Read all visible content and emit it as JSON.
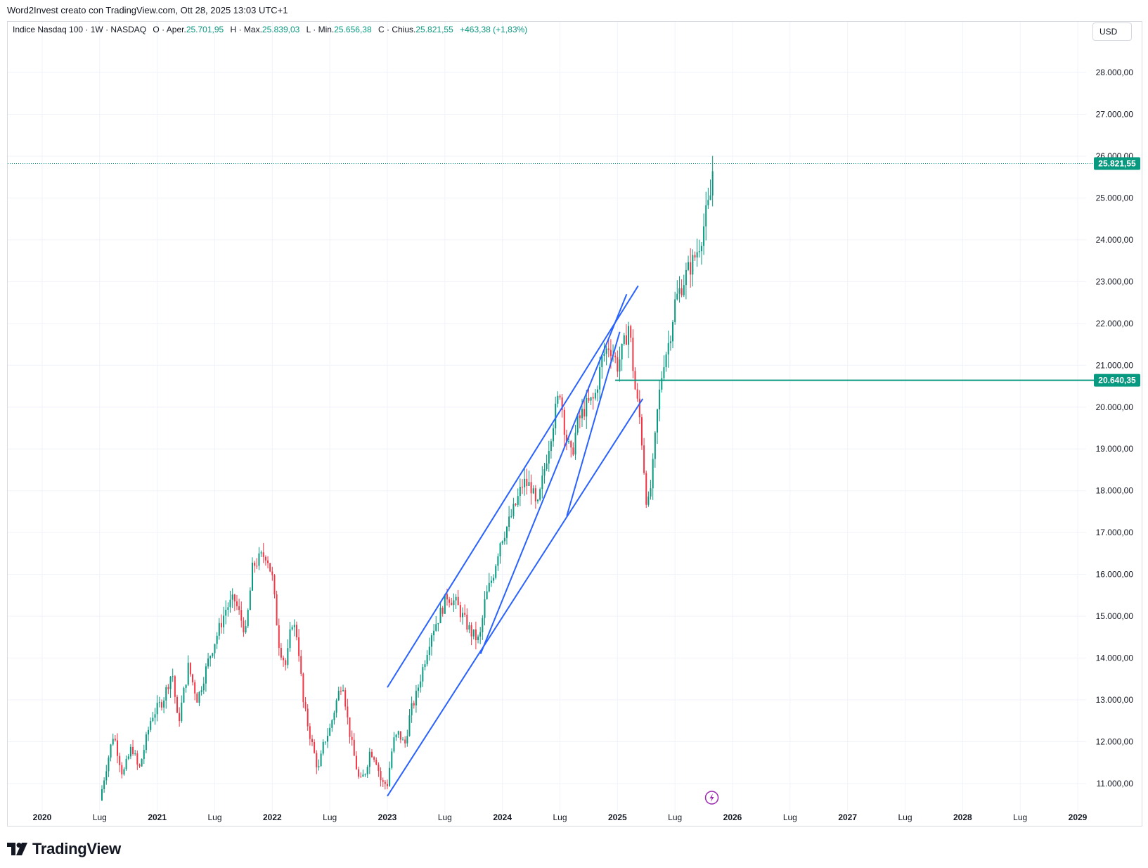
{
  "header": {
    "caption": "Word2Invest creato con TradingView.com, Ott 28, 2025 13:03 UTC+1"
  },
  "legend": {
    "symbol": "Indice Nasdaq 100 · 1W · NASDAQ",
    "o_label": "O",
    "open_label": "Aper.",
    "open_value": "25.701,95",
    "h_label": "H",
    "high_label": "Max.",
    "high_value": "25.839,03",
    "l_label": "L",
    "low_label": "Min.",
    "low_value": "25.656,38",
    "c_label": "C",
    "close_label": "Chius.",
    "close_value": "25.821,55",
    "change": "+463,38 (+1,83%)"
  },
  "currency": "USD",
  "footer": {
    "brand": "TradingView"
  },
  "icons": {
    "logo": "tradingview-logo-icon",
    "event": "lightning-bolt-icon"
  },
  "colors": {
    "up": "#089981",
    "down": "#f23645",
    "trendline": "#2962ff",
    "hline": "#089981",
    "event": "#9c27b0"
  },
  "chart_data": {
    "type": "candlestick",
    "title": "Indice Nasdaq 100 · 1W · NASDAQ",
    "timeframe": "1W",
    "currency": "USD",
    "y_axis": {
      "ticks": [
        "11.000,00",
        "12.000,00",
        "13.000,00",
        "14.000,00",
        "15.000,00",
        "16.000,00",
        "17.000,00",
        "18.000,00",
        "19.000,00",
        "20.000,00",
        "21.000,00",
        "22.000,00",
        "23.000,00",
        "24.000,00",
        "25.000,00",
        "26.000,00",
        "27.000,00",
        "28.000,00"
      ],
      "tick_values": [
        11000,
        12000,
        13000,
        14000,
        15000,
        16000,
        17000,
        18000,
        19000,
        20000,
        21000,
        22000,
        23000,
        24000,
        25000,
        26000,
        27000,
        28000
      ],
      "range": [
        10500,
        28900
      ]
    },
    "x_axis": {
      "labels": [
        "2020",
        "Lug",
        "2021",
        "Lug",
        "2022",
        "Lug",
        "2023",
        "Lug",
        "2024",
        "Lug",
        "2025",
        "Lug",
        "2026",
        "Lug",
        "2027",
        "Lug",
        "2028",
        "Lug",
        "2029"
      ],
      "label_times": [
        2020.0,
        2020.5,
        2021.0,
        2021.5,
        2022.0,
        2022.5,
        2023.0,
        2023.5,
        2024.0,
        2024.5,
        2025.0,
        2025.5,
        2026.0,
        2026.5,
        2027.0,
        2027.5,
        2028.0,
        2028.5,
        2029.0
      ],
      "year_labels": [
        "2020",
        "2021",
        "2022",
        "2023",
        "2024",
        "2025",
        "2026",
        "2027",
        "2028",
        "2029"
      ],
      "range": [
        2019.67,
        2029.12
      ]
    },
    "price_path": [
      [
        2020.5,
        10600
      ],
      [
        2020.55,
        11300
      ],
      [
        2020.62,
        12200
      ],
      [
        2020.7,
        11200
      ],
      [
        2020.78,
        11900
      ],
      [
        2020.84,
        11300
      ],
      [
        2020.95,
        12600
      ],
      [
        2021.05,
        13000
      ],
      [
        2021.13,
        13700
      ],
      [
        2021.18,
        12400
      ],
      [
        2021.27,
        13800
      ],
      [
        2021.35,
        13000
      ],
      [
        2021.45,
        14000
      ],
      [
        2021.55,
        14800
      ],
      [
        2021.6,
        15200
      ],
      [
        2021.67,
        15400
      ],
      [
        2021.72,
        15000
      ],
      [
        2021.77,
        14600
      ],
      [
        2021.83,
        16200
      ],
      [
        2021.9,
        16400
      ],
      [
        2021.95,
        16500
      ],
      [
        2022.0,
        15900
      ],
      [
        2022.06,
        14300
      ],
      [
        2022.12,
        13800
      ],
      [
        2022.17,
        14900
      ],
      [
        2022.22,
        14500
      ],
      [
        2022.27,
        12900
      ],
      [
        2022.34,
        12000
      ],
      [
        2022.4,
        11300
      ],
      [
        2022.45,
        12000
      ],
      [
        2022.5,
        12300
      ],
      [
        2022.56,
        13000
      ],
      [
        2022.61,
        13500
      ],
      [
        2022.66,
        12400
      ],
      [
        2022.7,
        11800
      ],
      [
        2022.76,
        11000
      ],
      [
        2022.81,
        11300
      ],
      [
        2022.85,
        11800
      ],
      [
        2022.9,
        11600
      ],
      [
        2022.95,
        11000
      ],
      [
        2023.0,
        11000
      ],
      [
        2023.05,
        12000
      ],
      [
        2023.1,
        12200
      ],
      [
        2023.15,
        11900
      ],
      [
        2023.2,
        12700
      ],
      [
        2023.25,
        13100
      ],
      [
        2023.32,
        13900
      ],
      [
        2023.38,
        14600
      ],
      [
        2023.45,
        15000
      ],
      [
        2023.52,
        15500
      ],
      [
        2023.6,
        15300
      ],
      [
        2023.67,
        14900
      ],
      [
        2023.73,
        14600
      ],
      [
        2023.8,
        14400
      ],
      [
        2023.85,
        15400
      ],
      [
        2023.92,
        16000
      ],
      [
        2023.98,
        16800
      ],
      [
        2024.05,
        17200
      ],
      [
        2024.12,
        17700
      ],
      [
        2024.18,
        18200
      ],
      [
        2024.25,
        18100
      ],
      [
        2024.3,
        17500
      ],
      [
        2024.37,
        18600
      ],
      [
        2024.43,
        19500
      ],
      [
        2024.5,
        20400
      ],
      [
        2024.55,
        19300
      ],
      [
        2024.6,
        18800
      ],
      [
        2024.65,
        19600
      ],
      [
        2024.72,
        20000
      ],
      [
        2024.8,
        20200
      ],
      [
        2024.87,
        21200
      ],
      [
        2024.93,
        21500
      ],
      [
        2025.0,
        21000
      ],
      [
        2025.05,
        21400
      ],
      [
        2025.1,
        22000
      ],
      [
        2025.15,
        20500
      ],
      [
        2025.2,
        19600
      ],
      [
        2025.26,
        17500
      ],
      [
        2025.3,
        18300
      ],
      [
        2025.35,
        20000
      ],
      [
        2025.4,
        21100
      ],
      [
        2025.45,
        21600
      ],
      [
        2025.5,
        22500
      ],
      [
        2025.57,
        23000
      ],
      [
        2025.62,
        23300
      ],
      [
        2025.66,
        23500
      ],
      [
        2025.7,
        23800
      ],
      [
        2025.74,
        24200
      ],
      [
        2025.77,
        24600
      ],
      [
        2025.8,
        24900
      ],
      [
        2025.82,
        25300
      ],
      [
        2025.83,
        25821.55
      ]
    ],
    "last_price": {
      "value": 25821.55,
      "label": "25.821,55"
    },
    "horizontal_line": {
      "value": 20640.35,
      "label": "20.640,35",
      "from_time": 2024.98
    },
    "trendlines": [
      {
        "points": [
          [
            2023.0,
            13300
          ],
          [
            2025.18,
            22900
          ]
        ]
      },
      {
        "points": [
          [
            2023.0,
            10700
          ],
          [
            2025.22,
            20200
          ]
        ]
      },
      {
        "points": [
          [
            2023.81,
            14100
          ],
          [
            2025.08,
            22700
          ]
        ]
      },
      {
        "points": [
          [
            2024.56,
            17400
          ],
          [
            2025.02,
            21800
          ]
        ]
      }
    ],
    "event_marker": {
      "time": 2025.82
    },
    "grid": true
  }
}
